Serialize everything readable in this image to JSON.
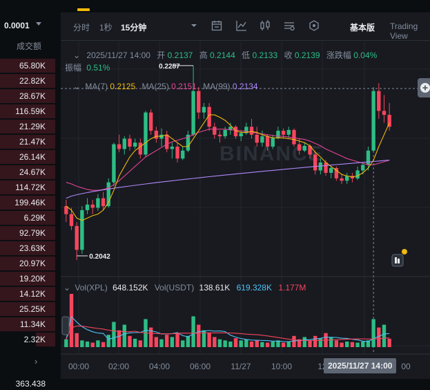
{
  "left_panel": {
    "top_value": "0.0001",
    "header": "成交额",
    "rows": [
      {
        "label": "65.80K",
        "fill": 1.0
      },
      {
        "label": "22.82K",
        "fill": 1.0
      },
      {
        "label": "28.67K",
        "fill": 1.0
      },
      {
        "label": "116.59K",
        "fill": 1.0
      },
      {
        "label": "21.29K",
        "fill": 1.0
      },
      {
        "label": "21.47K",
        "fill": 1.0
      },
      {
        "label": "26.14K",
        "fill": 1.0
      },
      {
        "label": "24.67K",
        "fill": 1.0
      },
      {
        "label": "114.72K",
        "fill": 1.0
      },
      {
        "label": "199.46K",
        "fill": 1.0
      },
      {
        "label": "6.29K",
        "fill": 1.0
      },
      {
        "label": "92.79K",
        "fill": 1.0
      },
      {
        "label": "23.63K",
        "fill": 1.0
      },
      {
        "label": "20.97K",
        "fill": 1.0
      },
      {
        "label": "19.20K",
        "fill": 1.0
      },
      {
        "label": "14.12K",
        "fill": 1.0
      },
      {
        "label": "25.25K",
        "fill": 1.0
      },
      {
        "label": "11.34K",
        "fill": 1.0
      },
      {
        "label": "2.32K",
        "fill": 0.35
      }
    ],
    "bottom_value": "363.438"
  },
  "toolbar": {
    "items": [
      "分时",
      "1秒",
      "15分钟"
    ],
    "active": "15分钟",
    "view_basic": "基本版",
    "view_tv": "Trading View"
  },
  "ohlc": {
    "time": "2025/11/27 14:00",
    "open_label": "开",
    "open": "0.2137",
    "high_label": "高",
    "high": "0.2144",
    "low_label": "低",
    "low": "0.2133",
    "close_label": "收",
    "close": "0.2139",
    "change_label": "涨跌幅",
    "change": "0.04%",
    "amp_label": "振幅",
    "amp": "0.51%"
  },
  "ma": {
    "ma7_label": "MA(7)",
    "ma7": "0.2125",
    "ma25_label": "MA(25)",
    "ma25": "0.2151",
    "ma99_label": "MA(99)",
    "ma99": "0.2134"
  },
  "volume_info": {
    "vol_xpl_label": "Vol(XPL)",
    "vol_xpl": "648.152K",
    "vol_usdt_label": "Vol(USDT)",
    "vol_usdt": "138.61K",
    "v2": "619.328K",
    "v3": "1.177M"
  },
  "price_marks": {
    "high": "0.2287",
    "low": "0.2042"
  },
  "x_axis": [
    "00:00",
    "02:00",
    "04:00",
    "06:00",
    "11/27",
    "10:00",
    "12:00",
    "14:00"
  ],
  "crosshair_time": "2025/11/27 14:00",
  "colors": {
    "up": "#2ebd85",
    "down": "#f6465d",
    "ma7": "#f0b90b",
    "ma25": "#e84393",
    "ma99": "#b088f9",
    "vol_ma": "#4fc3f7"
  },
  "chart_data": {
    "type": "candlestick",
    "ylim": [
      0.203,
      0.23
    ],
    "candles": [
      [
        0.211,
        0.2118,
        0.209,
        0.21
      ],
      [
        0.21,
        0.2108,
        0.208,
        0.2085
      ],
      [
        0.2085,
        0.209,
        0.2042,
        0.2055
      ],
      [
        0.2055,
        0.211,
        0.205,
        0.2105
      ],
      [
        0.2105,
        0.212,
        0.21,
        0.2112
      ],
      [
        0.2112,
        0.2118,
        0.21,
        0.2108
      ],
      [
        0.2108,
        0.2125,
        0.2104,
        0.212
      ],
      [
        0.212,
        0.2128,
        0.2105,
        0.211
      ],
      [
        0.211,
        0.2145,
        0.2108,
        0.214
      ],
      [
        0.214,
        0.219,
        0.2135,
        0.2188
      ],
      [
        0.2188,
        0.22,
        0.2178,
        0.2182
      ],
      [
        0.2182,
        0.2198,
        0.2175,
        0.2195
      ],
      [
        0.2195,
        0.22,
        0.218,
        0.2185
      ],
      [
        0.2185,
        0.2195,
        0.2182,
        0.219
      ],
      [
        0.219,
        0.2195,
        0.217,
        0.2175
      ],
      [
        0.2175,
        0.223,
        0.2172,
        0.2228
      ],
      [
        0.2228,
        0.2232,
        0.22,
        0.2205
      ],
      [
        0.2205,
        0.221,
        0.219,
        0.2195
      ],
      [
        0.2195,
        0.2208,
        0.2185,
        0.22
      ],
      [
        0.22,
        0.2205,
        0.2178,
        0.2182
      ],
      [
        0.2182,
        0.219,
        0.217,
        0.2185
      ],
      [
        0.2185,
        0.219,
        0.2165,
        0.217
      ],
      [
        0.217,
        0.2185,
        0.2168,
        0.218
      ],
      [
        0.218,
        0.2205,
        0.2178,
        0.22
      ],
      [
        0.22,
        0.2287,
        0.2198,
        0.2255
      ],
      [
        0.2255,
        0.226,
        0.222,
        0.2228
      ],
      [
        0.2228,
        0.224,
        0.222,
        0.2235
      ],
      [
        0.2235,
        0.224,
        0.2205,
        0.221
      ],
      [
        0.221,
        0.2215,
        0.2195,
        0.22
      ],
      [
        0.22,
        0.2205,
        0.219,
        0.2198
      ],
      [
        0.2198,
        0.221,
        0.2195,
        0.2206
      ],
      [
        0.2206,
        0.2215,
        0.22,
        0.221
      ],
      [
        0.221,
        0.2212,
        0.2195,
        0.2198
      ],
      [
        0.2198,
        0.2205,
        0.2192,
        0.2202
      ],
      [
        0.2202,
        0.2215,
        0.22,
        0.221
      ],
      [
        0.221,
        0.222,
        0.2195,
        0.22
      ],
      [
        0.22,
        0.221,
        0.2185,
        0.219
      ],
      [
        0.219,
        0.2205,
        0.2185,
        0.2198
      ],
      [
        0.2198,
        0.22,
        0.218,
        0.2185
      ],
      [
        0.2185,
        0.22,
        0.2182,
        0.2196
      ],
      [
        0.2196,
        0.221,
        0.2194,
        0.2205
      ],
      [
        0.2205,
        0.2208,
        0.2195,
        0.22
      ],
      [
        0.22,
        0.221,
        0.2196,
        0.2206
      ],
      [
        0.2206,
        0.2208,
        0.2185,
        0.2188
      ],
      [
        0.2188,
        0.2195,
        0.2175,
        0.218
      ],
      [
        0.218,
        0.219,
        0.2178,
        0.2186
      ],
      [
        0.2186,
        0.2188,
        0.217,
        0.2175
      ],
      [
        0.2175,
        0.218,
        0.215,
        0.2155
      ],
      [
        0.2155,
        0.217,
        0.215,
        0.2165
      ],
      [
        0.2165,
        0.2168,
        0.2148,
        0.2152
      ],
      [
        0.2152,
        0.216,
        0.2145,
        0.2158
      ],
      [
        0.2158,
        0.216,
        0.2142,
        0.2145
      ],
      [
        0.2145,
        0.215,
        0.2138,
        0.2142
      ],
      [
        0.2142,
        0.2152,
        0.2138,
        0.2148
      ],
      [
        0.2148,
        0.2152,
        0.214,
        0.2145
      ],
      [
        0.2145,
        0.216,
        0.2143,
        0.2155
      ],
      [
        0.2155,
        0.2165,
        0.215,
        0.2162
      ],
      [
        0.2162,
        0.2185,
        0.2155,
        0.218
      ],
      [
        0.218,
        0.226,
        0.2178,
        0.2255
      ],
      [
        0.2255,
        0.2265,
        0.222,
        0.223
      ],
      [
        0.223,
        0.225,
        0.2215,
        0.2225
      ],
      [
        0.2225,
        0.224,
        0.2205,
        0.221
      ]
    ],
    "volumes": [
      [
        14,
        1
      ],
      [
        95,
        0
      ],
      [
        25,
        0
      ],
      [
        12,
        1
      ],
      [
        10,
        1
      ],
      [
        8,
        0
      ],
      [
        12,
        1
      ],
      [
        9,
        0
      ],
      [
        22,
        1
      ],
      [
        45,
        1
      ],
      [
        30,
        0
      ],
      [
        40,
        1
      ],
      [
        20,
        0
      ],
      [
        15,
        1
      ],
      [
        12,
        0
      ],
      [
        50,
        1
      ],
      [
        35,
        0
      ],
      [
        18,
        0
      ],
      [
        14,
        1
      ],
      [
        22,
        0
      ],
      [
        18,
        1
      ],
      [
        25,
        0
      ],
      [
        12,
        1
      ],
      [
        20,
        1
      ],
      [
        55,
        1
      ],
      [
        40,
        0
      ],
      [
        30,
        1
      ],
      [
        25,
        0
      ],
      [
        18,
        0
      ],
      [
        14,
        1
      ],
      [
        12,
        1
      ],
      [
        10,
        1
      ],
      [
        16,
        0
      ],
      [
        12,
        1
      ],
      [
        14,
        1
      ],
      [
        10,
        0
      ],
      [
        12,
        0
      ],
      [
        9,
        1
      ],
      [
        8,
        0
      ],
      [
        10,
        1
      ],
      [
        12,
        1
      ],
      [
        8,
        0
      ],
      [
        10,
        1
      ],
      [
        20,
        0
      ],
      [
        14,
        0
      ],
      [
        18,
        1
      ],
      [
        12,
        0
      ],
      [
        20,
        0
      ],
      [
        16,
        1
      ],
      [
        25,
        0
      ],
      [
        18,
        1
      ],
      [
        12,
        0
      ],
      [
        8,
        0
      ],
      [
        10,
        1
      ],
      [
        9,
        0
      ],
      [
        8,
        1
      ],
      [
        10,
        1
      ],
      [
        12,
        1
      ],
      [
        50,
        1
      ],
      [
        35,
        0
      ],
      [
        40,
        1
      ],
      [
        15,
        0
      ]
    ],
    "ma7": [
      0.211,
      0.2105,
      0.2095,
      0.2092,
      0.2095,
      0.2098,
      0.21,
      0.2105,
      0.2115,
      0.213,
      0.2148,
      0.216,
      0.2172,
      0.218,
      0.2185,
      0.219,
      0.2195,
      0.2198,
      0.2198,
      0.22,
      0.2195,
      0.219,
      0.2185,
      0.2185,
      0.2195,
      0.2205,
      0.2215,
      0.2225,
      0.2225,
      0.2222,
      0.2218,
      0.2212,
      0.2205,
      0.2203,
      0.2203,
      0.2204,
      0.2203,
      0.22,
      0.2198,
      0.2196,
      0.2196,
      0.2196,
      0.2195,
      0.2194,
      0.2192,
      0.219,
      0.2186,
      0.2178,
      0.2172,
      0.2165,
      0.216,
      0.2155,
      0.215,
      0.2148,
      0.2147,
      0.2148,
      0.2152,
      0.2158,
      0.2168,
      0.2185,
      0.22,
      0.2215
    ],
    "ma25": [
      0.214,
      0.2138,
      0.2135,
      0.2133,
      0.2131,
      0.213,
      0.213,
      0.2131,
      0.2133,
      0.2137,
      0.2142,
      0.2148,
      0.2154,
      0.216,
      0.2166,
      0.2172,
      0.2176,
      0.218,
      0.2184,
      0.2188,
      0.2191,
      0.2193,
      0.2195,
      0.2197,
      0.22,
      0.2203,
      0.2205,
      0.2207,
      0.2207,
      0.2207,
      0.2207,
      0.2206,
      0.2206,
      0.2205,
      0.2204,
      0.2203,
      0.2202,
      0.2201,
      0.22,
      0.2199,
      0.2198,
      0.2198,
      0.2197,
      0.2196,
      0.2195,
      0.2194,
      0.2192,
      0.2189,
      0.2186,
      0.2182,
      0.2179,
      0.2176,
      0.2173,
      0.217,
      0.2168,
      0.2166,
      0.2164,
      0.2162,
      0.2162,
      0.2164,
      0.2166,
      0.2168
    ]
  }
}
